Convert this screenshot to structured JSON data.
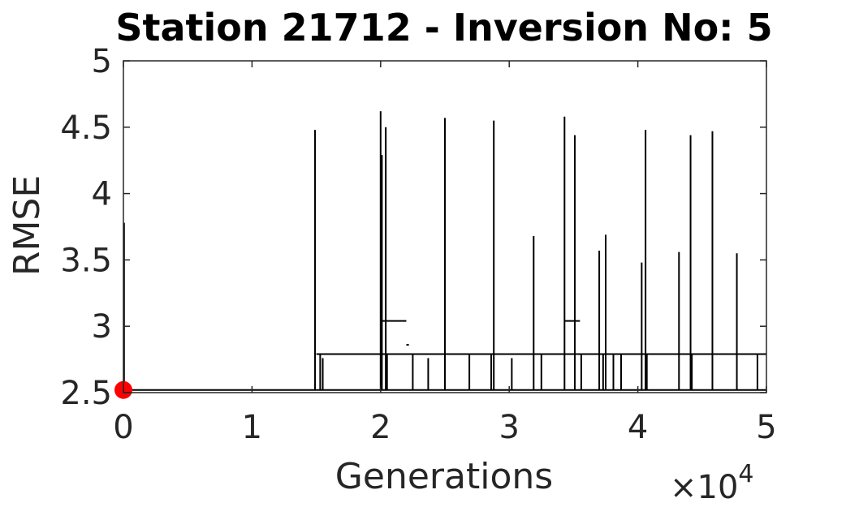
{
  "chart_data": {
    "type": "line",
    "title": "Station 21712 - Inversion No: 5",
    "xlabel": "Generations",
    "ylabel": "RMSE",
    "x_multiplier_label": {
      "base": "×10",
      "exponent": "4"
    },
    "xlim": [
      0,
      5
    ],
    "ylim": [
      2.5,
      5
    ],
    "x_ticks": [
      0,
      1,
      2,
      3,
      4,
      5
    ],
    "x_tick_labels": [
      "0",
      "1",
      "2",
      "3",
      "4",
      "5"
    ],
    "y_ticks": [
      2.5,
      3,
      3.5,
      4,
      4.5,
      5
    ],
    "y_tick_labels": [
      "2.5",
      "3",
      "3.5",
      "4",
      "4.5",
      "5"
    ],
    "grid": false,
    "line_color": "#000000",
    "marker_color": "#ff0000",
    "baseline_rmse": 2.52,
    "upper_rmse_level": 2.79,
    "start_point": {
      "x": 0,
      "y": 2.52
    },
    "initial_spike": {
      "x": 0.005,
      "y": 3.78
    },
    "spikes": [
      {
        "x": 1.49,
        "y": 4.48
      },
      {
        "x": 2.0,
        "y": 4.62
      },
      {
        "x": 2.01,
        "y": 4.29
      },
      {
        "x": 2.04,
        "y": 4.5
      },
      {
        "x": 2.5,
        "y": 4.57
      },
      {
        "x": 2.88,
        "y": 4.55
      },
      {
        "x": 3.19,
        "y": 3.68
      },
      {
        "x": 3.43,
        "y": 4.58
      },
      {
        "x": 3.51,
        "y": 4.44
      },
      {
        "x": 3.7,
        "y": 3.57
      },
      {
        "x": 3.75,
        "y": 3.69
      },
      {
        "x": 4.03,
        "y": 3.48
      },
      {
        "x": 4.06,
        "y": 4.48
      },
      {
        "x": 4.32,
        "y": 3.56
      },
      {
        "x": 4.41,
        "y": 4.44
      },
      {
        "x": 4.58,
        "y": 4.47
      },
      {
        "x": 4.77,
        "y": 3.55
      }
    ],
    "plateaus": [
      {
        "x0": 1.5,
        "x1": 5.0,
        "y": 2.79
      },
      {
        "x0": 2.01,
        "x1": 2.2,
        "y": 3.04
      },
      {
        "x0": 3.43,
        "x1": 3.55,
        "y": 3.04
      },
      {
        "x0": 2.2,
        "x1": 2.22,
        "y": 2.86
      }
    ],
    "drops": [
      {
        "x": 1.53,
        "from": 2.79,
        "to": 2.52
      },
      {
        "x": 1.55,
        "from": 2.76,
        "to": 2.52
      },
      {
        "x": 2.05,
        "from": 2.79,
        "to": 2.52
      },
      {
        "x": 2.25,
        "from": 2.79,
        "to": 2.52
      },
      {
        "x": 2.37,
        "from": 2.76,
        "to": 2.52
      },
      {
        "x": 2.69,
        "from": 2.79,
        "to": 2.52
      },
      {
        "x": 2.86,
        "from": 2.79,
        "to": 2.52
      },
      {
        "x": 3.02,
        "from": 2.76,
        "to": 2.52
      },
      {
        "x": 3.25,
        "from": 2.79,
        "to": 2.52
      },
      {
        "x": 3.56,
        "from": 2.79,
        "to": 2.52
      },
      {
        "x": 3.73,
        "from": 2.79,
        "to": 2.52
      },
      {
        "x": 3.81,
        "from": 2.79,
        "to": 2.52
      },
      {
        "x": 3.87,
        "from": 2.79,
        "to": 2.52
      },
      {
        "x": 4.07,
        "from": 2.79,
        "to": 2.52
      },
      {
        "x": 4.42,
        "from": 2.79,
        "to": 2.52
      },
      {
        "x": 4.93,
        "from": 2.79,
        "to": 2.52
      }
    ]
  }
}
